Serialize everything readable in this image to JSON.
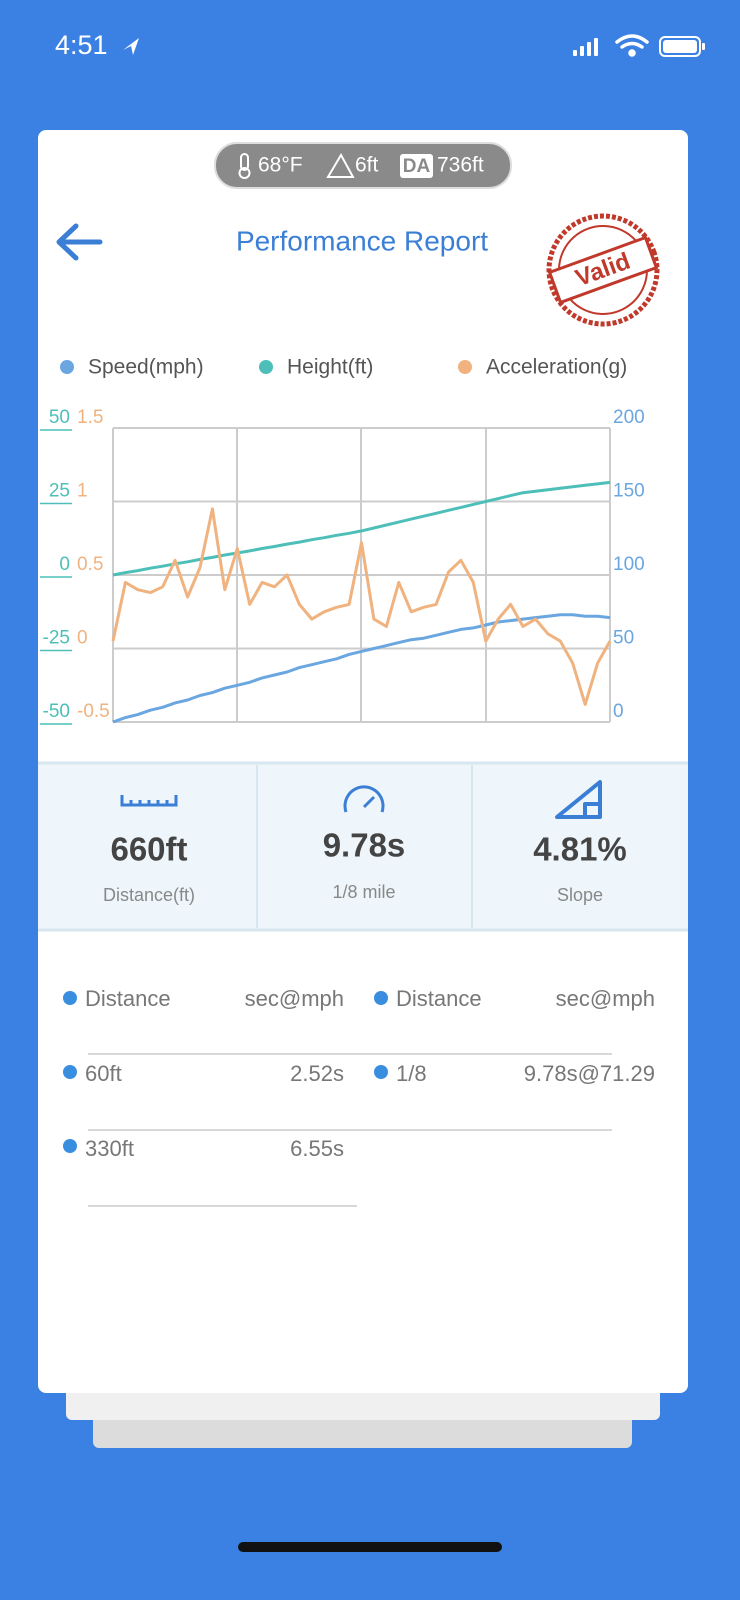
{
  "status_bar": {
    "time": "4:51"
  },
  "conditions": {
    "temperature": "68°F",
    "altitude": "6ft",
    "density_altitude_badge": "DA",
    "density_altitude": "736ft"
  },
  "header": {
    "title": "Performance Report",
    "stamp": "Valid"
  },
  "chart_data": {
    "type": "line",
    "ylim": [
      -50,
      50
    ],
    "yticks": [
      -50,
      -25,
      0,
      25,
      50
    ],
    "y2lim": [
      -0.5,
      1.5
    ],
    "y2ticks": [
      -0.5,
      0,
      0.5,
      1,
      1.5
    ],
    "y3lim": [
      0,
      200
    ],
    "y3ticks": [
      0,
      50,
      100,
      150,
      200
    ],
    "grid": true,
    "series": [
      {
        "name": "Speed(mph)",
        "color": "#6aa6e0",
        "axis": "y3",
        "values": [
          0,
          3,
          5,
          8,
          10,
          13,
          15,
          18,
          20,
          23,
          25,
          27,
          30,
          32,
          34,
          37,
          39,
          41,
          43,
          46,
          48,
          50,
          52,
          54,
          56,
          57,
          59,
          61,
          63,
          64,
          66,
          68,
          69,
          70,
          71,
          72,
          73,
          73,
          72,
          72,
          71
        ]
      },
      {
        "name": "Height(ft)",
        "color": "#4dbfb8",
        "axis": "y",
        "values": [
          0,
          0.8,
          1.5,
          2.3,
          3,
          3.8,
          4.5,
          5.3,
          6,
          6.8,
          7.5,
          8.2,
          9,
          9.7,
          10.5,
          11.2,
          12,
          12.7,
          13.5,
          14.2,
          15,
          16,
          17,
          18,
          19,
          20,
          21,
          22,
          23,
          24,
          25,
          26,
          27,
          28,
          28.5,
          29,
          29.5,
          30,
          30.5,
          31,
          31.5
        ]
      },
      {
        "name": "Acceleration(g)",
        "color": "#f0b27e",
        "axis": "y2",
        "values": [
          0.05,
          0.45,
          0.4,
          0.38,
          0.42,
          0.6,
          0.35,
          0.55,
          0.95,
          0.4,
          0.68,
          0.3,
          0.45,
          0.42,
          0.5,
          0.3,
          0.2,
          0.25,
          0.28,
          0.3,
          0.72,
          0.2,
          0.15,
          0.45,
          0.25,
          0.28,
          0.3,
          0.52,
          0.6,
          0.45,
          0.05,
          0.2,
          0.3,
          0.15,
          0.2,
          0.1,
          0.05,
          -0.1,
          -0.38,
          -0.1,
          0.05
        ]
      }
    ]
  },
  "stats": [
    {
      "value": "660ft",
      "label": "Distance(ft)"
    },
    {
      "value": "9.78s",
      "label": "1/8 mile"
    },
    {
      "value": "4.81%",
      "label": "Slope"
    }
  ],
  "table": {
    "headers": [
      "Distance",
      "sec@mph",
      "Distance",
      "sec@mph"
    ],
    "rows": [
      [
        "60ft",
        "2.52s",
        "1/8",
        "9.78s@71.29"
      ],
      [
        "330ft",
        "6.55s"
      ]
    ]
  }
}
